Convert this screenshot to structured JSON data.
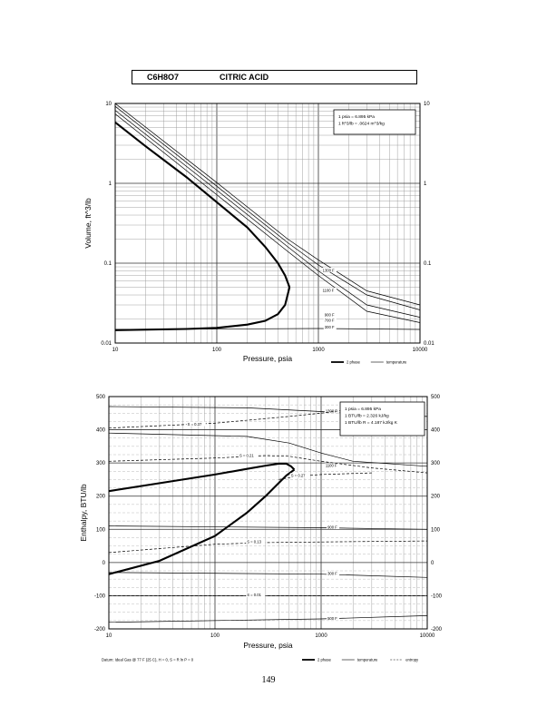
{
  "header": {
    "formula": "C6H8O7",
    "name": "CITRIC ACID"
  },
  "page_number": "149",
  "chart_data": [
    {
      "type": "line",
      "xscale": "log",
      "yscale": "log",
      "xlim": [
        10,
        10000
      ],
      "ylim": [
        0.01,
        10
      ],
      "xlabel": "Pressure, psia",
      "ylabel": "Volume, ft^3/lb",
      "x_ticks": [
        "10",
        "100",
        "1000",
        "10000"
      ],
      "y_ticks": [
        "0.01",
        "0.1",
        "1",
        "10"
      ],
      "y_ticks_right": [
        "0.01",
        "0.1",
        "1",
        "10"
      ],
      "conversion_notes": [
        "1 psia = 6.895 kPa",
        "1 ft^3/lb = .0624 m^3/kg"
      ],
      "legend": [
        {
          "label": "2 phase",
          "style": "thick"
        },
        {
          "label": "temperature",
          "style": "thin"
        }
      ],
      "series": [
        {
          "kind": "two-phase-vapor",
          "points": [
            [
              10,
              5.8
            ],
            [
              20,
              2.9
            ],
            [
              50,
              1.2
            ],
            [
              100,
              0.58
            ],
            [
              200,
              0.28
            ],
            [
              300,
              0.16
            ],
            [
              400,
              0.1
            ],
            [
              470,
              0.07
            ],
            [
              520,
              0.05
            ]
          ]
        },
        {
          "kind": "two-phase-liquid",
          "points": [
            [
              10,
              0.0145
            ],
            [
              50,
              0.015
            ],
            [
              100,
              0.0155
            ],
            [
              200,
              0.017
            ],
            [
              300,
              0.019
            ],
            [
              400,
              0.023
            ],
            [
              470,
              0.03
            ],
            [
              520,
              0.05
            ]
          ]
        },
        {
          "name": "300 F",
          "label_at": [
            1150,
            0.0155
          ],
          "points": [
            [
              10,
              0.0148
            ],
            [
              1000,
              0.0152
            ],
            [
              10000,
              0.0148
            ]
          ]
        },
        {
          "name": "700 F",
          "label_at": [
            1150,
            0.019
          ],
          "points": [
            [
              10,
              7.4
            ],
            [
              100,
              0.72
            ],
            [
              500,
              0.14
            ],
            [
              1000,
              0.07
            ],
            [
              3000,
              0.025
            ],
            [
              10000,
              0.018
            ]
          ]
        },
        {
          "name": "900 F",
          "label_at": [
            1150,
            0.022
          ],
          "points": [
            [
              10,
              8.2
            ],
            [
              100,
              0.82
            ],
            [
              500,
              0.16
            ],
            [
              1000,
              0.08
            ],
            [
              3000,
              0.03
            ],
            [
              10000,
              0.021
            ]
          ]
        },
        {
          "name": "1100 F",
          "label_at": [
            1100,
            0.045
          ],
          "points": [
            [
              10,
              9.2
            ],
            [
              100,
              0.92
            ],
            [
              500,
              0.18
            ],
            [
              1000,
              0.095
            ],
            [
              3000,
              0.04
            ],
            [
              10000,
              0.026
            ]
          ]
        },
        {
          "name": "1300 F",
          "label_at": [
            1100,
            0.08
          ],
          "points": [
            [
              10,
              10
            ],
            [
              100,
              1.02
            ],
            [
              500,
              0.2
            ],
            [
              1000,
              0.11
            ],
            [
              3000,
              0.045
            ],
            [
              10000,
              0.03
            ]
          ]
        }
      ]
    },
    {
      "type": "line",
      "xscale": "log",
      "yscale": "linear",
      "xlim": [
        10,
        10000
      ],
      "ylim": [
        -200,
        500
      ],
      "xlabel": "Pressure, psia",
      "ylabel": "Enthalpy, BTU/lb",
      "x_ticks": [
        "10",
        "100",
        "1000",
        "10000"
      ],
      "y_ticks": [
        "-200",
        "-100",
        "0",
        "100",
        "200",
        "300",
        "400",
        "500"
      ],
      "y_ticks_right": [
        "-200",
        "-100",
        "0",
        "100",
        "200",
        "300",
        "400",
        "500"
      ],
      "conversion_notes": [
        "1 psia = 6.895 kPa",
        "1 BTU/lb = 2.326 kJ/kg",
        "1 BTU/lb R = 4.187 kJ/kg K"
      ],
      "footnote": "Datum: Ideal Gas @ 77 F (25 C), H = 0, S = R ln P = 0",
      "legend": [
        {
          "label": "2 phase",
          "style": "thick"
        },
        {
          "label": "temperature",
          "style": "thin"
        },
        {
          "label": "entropy",
          "style": "dashed"
        }
      ],
      "series": [
        {
          "kind": "two-phase-vapor",
          "points": [
            [
              10,
              215
            ],
            [
              50,
              250
            ],
            [
              100,
              265
            ],
            [
              200,
              282
            ],
            [
              300,
              292
            ],
            [
              400,
              298
            ],
            [
              470,
              298
            ],
            [
              520,
              290
            ],
            [
              560,
              280
            ]
          ]
        },
        {
          "kind": "two-phase-liquid",
          "points": [
            [
              10,
              -35
            ],
            [
              30,
              5
            ],
            [
              100,
              80
            ],
            [
              200,
              150
            ],
            [
              300,
              200
            ],
            [
              400,
              240
            ],
            [
              470,
              262
            ],
            [
              560,
              280
            ]
          ]
        },
        {
          "name": "300 F",
          "label_at": [
            1150,
            -35
          ],
          "points": [
            [
              10,
              -30
            ],
            [
              1000,
              -35
            ],
            [
              10000,
              -45
            ]
          ]
        },
        {
          "name": "500 F",
          "label_at": [
            1150,
            -170
          ],
          "points": [
            [
              10,
              -180
            ],
            [
              1000,
              -170
            ],
            [
              10000,
              -160
            ]
          ]
        },
        {
          "name": "900 F",
          "label_at": [
            1150,
            105
          ],
          "points": [
            [
              10,
              110
            ],
            [
              1000,
              105
            ],
            [
              10000,
              100
            ]
          ]
        },
        {
          "name": "1100 F",
          "label_at": [
            1100,
            290
          ],
          "points": [
            [
              10,
              390
            ],
            [
              200,
              380
            ],
            [
              500,
              360
            ],
            [
              1000,
              330
            ],
            [
              2000,
              305
            ],
            [
              10000,
              290
            ]
          ]
        },
        {
          "name": "1300 F",
          "label_at": [
            1100,
            455
          ],
          "points": [
            [
              10,
              470
            ],
            [
              200,
              466
            ],
            [
              1000,
              455
            ],
            [
              3000,
              445
            ],
            [
              10000,
              440
            ]
          ]
        },
        {
          "name": "S = 0.37",
          "kind": "entropy",
          "label_at": [
            55,
            415
          ],
          "points": [
            [
              10,
              405
            ],
            [
              100,
              420
            ],
            [
              500,
              440
            ],
            [
              1000,
              450
            ],
            [
              3000,
              470
            ]
          ]
        },
        {
          "name": "S = 0.21",
          "kind": "entropy",
          "label_at": [
            170,
            320
          ],
          "points": [
            [
              10,
              305
            ],
            [
              100,
              315
            ],
            [
              300,
              322
            ],
            [
              500,
              320
            ],
            [
              1000,
              305
            ],
            [
              3000,
              285
            ],
            [
              10000,
              270
            ]
          ]
        },
        {
          "name": "S = 0.27",
          "kind": "entropy",
          "label_at": [
            520,
            260
          ],
          "points": [
            [
              400,
              250
            ],
            [
              600,
              260
            ],
            [
              1000,
              265
            ],
            [
              3000,
              270
            ]
          ]
        },
        {
          "name": "S = 0.13",
          "kind": "entropy",
          "label_at": [
            200,
            60
          ],
          "points": [
            [
              10,
              30
            ],
            [
              100,
              55
            ],
            [
              300,
              60
            ],
            [
              1000,
              62
            ],
            [
              10000,
              65
            ]
          ]
        },
        {
          "name": "S = 0.01",
          "kind": "entropy",
          "label_at": [
            200,
            -100
          ],
          "points": [
            [
              10,
              -100
            ],
            [
              1000,
              -100
            ],
            [
              10000,
              -100
            ]
          ]
        }
      ]
    }
  ]
}
